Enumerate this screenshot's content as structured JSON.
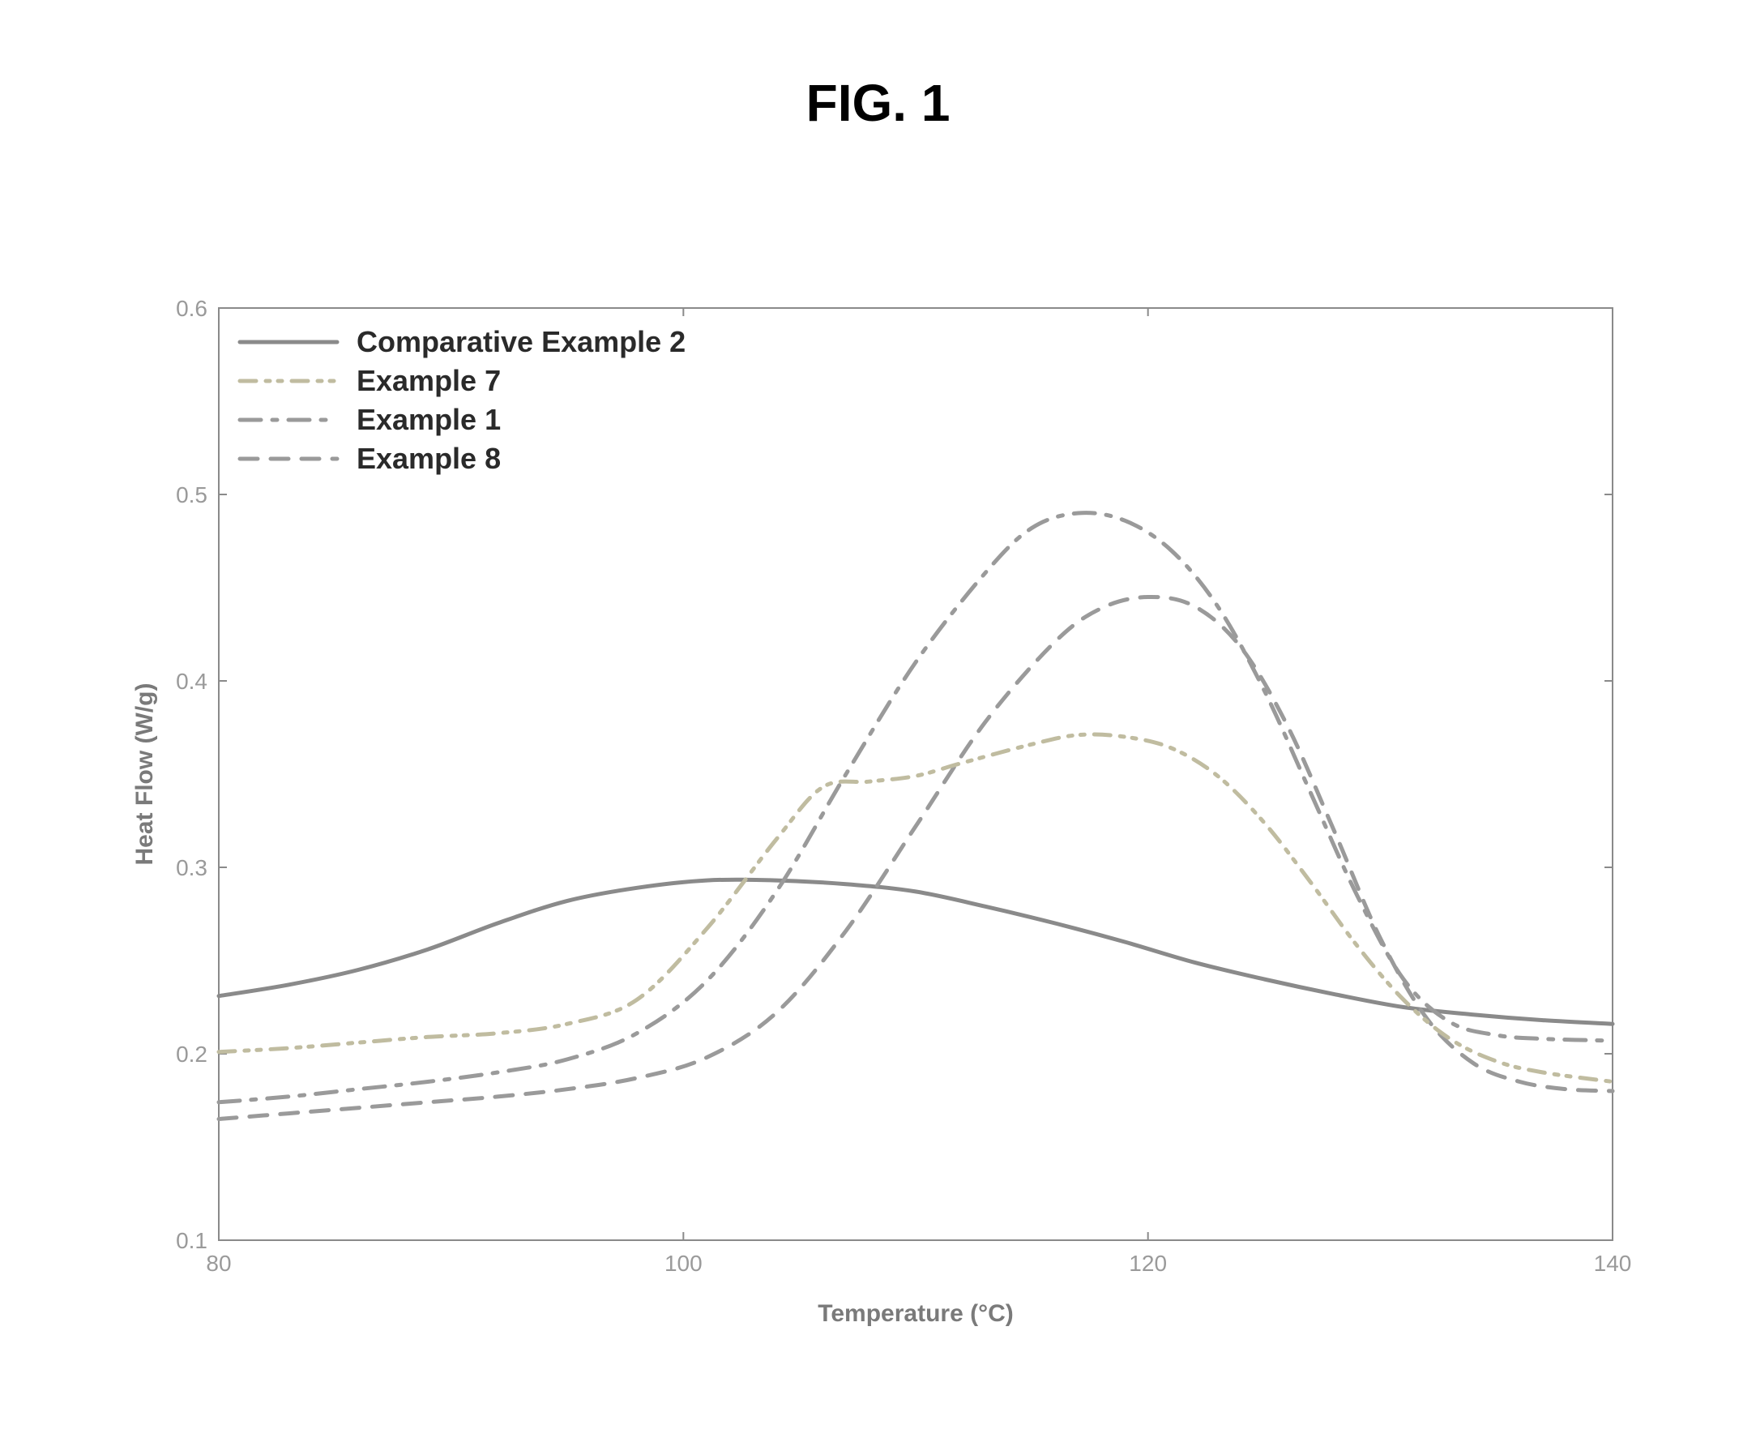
{
  "figure": {
    "title": "FIG. 1",
    "title_fontsize": 64,
    "title_color": "#000000"
  },
  "chart": {
    "type": "line",
    "background_color": "#ffffff",
    "plot_border_color": "#8a8a8a",
    "plot_border_width": 2,
    "xlabel": "Temperature (°C)",
    "ylabel": "Heat Flow (W/g)",
    "label_color": "#7a7a7a",
    "label_fontsize": 30,
    "tick_color": "#9a9a9a",
    "tick_fontsize": 28,
    "xlim": [
      80,
      140
    ],
    "ylim": [
      0.1,
      0.6
    ],
    "xticks": [
      80,
      100,
      120,
      140
    ],
    "yticks": [
      0.1,
      0.2,
      0.3,
      0.4,
      0.5,
      0.6
    ],
    "inner_ticks": true,
    "tick_length": 10,
    "legend": {
      "position": "top-left",
      "fontsize": 36,
      "text_color": "#2a2a2a",
      "swatch_length": 120,
      "items": [
        {
          "label": "Comparative Example 2",
          "series": "comp2"
        },
        {
          "label": "Example 7",
          "series": "ex7"
        },
        {
          "label": "Example 1",
          "series": "ex1"
        },
        {
          "label": "Example 8",
          "series": "ex8"
        }
      ]
    },
    "series": {
      "comp2": {
        "label": "Comparative Example 2",
        "color": "#8a8a8a",
        "line_width": 5,
        "dash": "solid",
        "data": [
          [
            80,
            0.231
          ],
          [
            83,
            0.237
          ],
          [
            86,
            0.245
          ],
          [
            89,
            0.256
          ],
          [
            92,
            0.27
          ],
          [
            95,
            0.282
          ],
          [
            98,
            0.289
          ],
          [
            101,
            0.293
          ],
          [
            104,
            0.293
          ],
          [
            107,
            0.291
          ],
          [
            110,
            0.287
          ],
          [
            113,
            0.279
          ],
          [
            116,
            0.27
          ],
          [
            119,
            0.26
          ],
          [
            122,
            0.249
          ],
          [
            125,
            0.24
          ],
          [
            128,
            0.232
          ],
          [
            131,
            0.225
          ],
          [
            134,
            0.221
          ],
          [
            137,
            0.218
          ],
          [
            140,
            0.216
          ]
        ]
      },
      "ex7": {
        "label": "Example 7",
        "color": "#c0bca0",
        "line_width": 5,
        "dash": "dash-dot-dot",
        "data": [
          [
            80,
            0.201
          ],
          [
            83,
            0.203
          ],
          [
            86,
            0.206
          ],
          [
            89,
            0.209
          ],
          [
            92,
            0.211
          ],
          [
            95,
            0.216
          ],
          [
            98,
            0.229
          ],
          [
            101,
            0.267
          ],
          [
            104,
            0.315
          ],
          [
            106,
            0.343
          ],
          [
            108,
            0.346
          ],
          [
            110,
            0.349
          ],
          [
            112,
            0.356
          ],
          [
            115,
            0.366
          ],
          [
            117,
            0.371
          ],
          [
            119,
            0.37
          ],
          [
            121,
            0.364
          ],
          [
            123,
            0.349
          ],
          [
            125,
            0.324
          ],
          [
            127,
            0.292
          ],
          [
            129,
            0.258
          ],
          [
            131,
            0.229
          ],
          [
            133,
            0.208
          ],
          [
            135,
            0.196
          ],
          [
            137,
            0.19
          ],
          [
            140,
            0.185
          ]
        ]
      },
      "ex1": {
        "label": "Example 1",
        "color": "#9a9a9a",
        "line_width": 5,
        "dash": "dash-dot",
        "data": [
          [
            80,
            0.174
          ],
          [
            83,
            0.177
          ],
          [
            86,
            0.181
          ],
          [
            89,
            0.185
          ],
          [
            92,
            0.19
          ],
          [
            95,
            0.197
          ],
          [
            98,
            0.211
          ],
          [
            101,
            0.239
          ],
          [
            104,
            0.287
          ],
          [
            107,
            0.35
          ],
          [
            110,
            0.41
          ],
          [
            113,
            0.458
          ],
          [
            115,
            0.482
          ],
          [
            117,
            0.49
          ],
          [
            119,
            0.486
          ],
          [
            121,
            0.47
          ],
          [
            123,
            0.44
          ],
          [
            125,
            0.395
          ],
          [
            127,
            0.34
          ],
          [
            129,
            0.285
          ],
          [
            131,
            0.24
          ],
          [
            133,
            0.217
          ],
          [
            135,
            0.21
          ],
          [
            137,
            0.208
          ],
          [
            140,
            0.207
          ]
        ]
      },
      "ex8": {
        "label": "Example 8",
        "color": "#9a9a9a",
        "line_width": 5,
        "dash": "dashed",
        "data": [
          [
            80,
            0.165
          ],
          [
            83,
            0.168
          ],
          [
            86,
            0.171
          ],
          [
            89,
            0.174
          ],
          [
            92,
            0.177
          ],
          [
            95,
            0.181
          ],
          [
            98,
            0.187
          ],
          [
            101,
            0.198
          ],
          [
            104,
            0.222
          ],
          [
            107,
            0.266
          ],
          [
            110,
            0.322
          ],
          [
            113,
            0.378
          ],
          [
            116,
            0.421
          ],
          [
            118,
            0.439
          ],
          [
            120,
            0.445
          ],
          [
            122,
            0.44
          ],
          [
            124,
            0.418
          ],
          [
            126,
            0.376
          ],
          [
            128,
            0.32
          ],
          [
            130,
            0.262
          ],
          [
            132,
            0.219
          ],
          [
            134,
            0.195
          ],
          [
            136,
            0.185
          ],
          [
            138,
            0.181
          ],
          [
            140,
            0.18
          ]
        ]
      }
    }
  }
}
